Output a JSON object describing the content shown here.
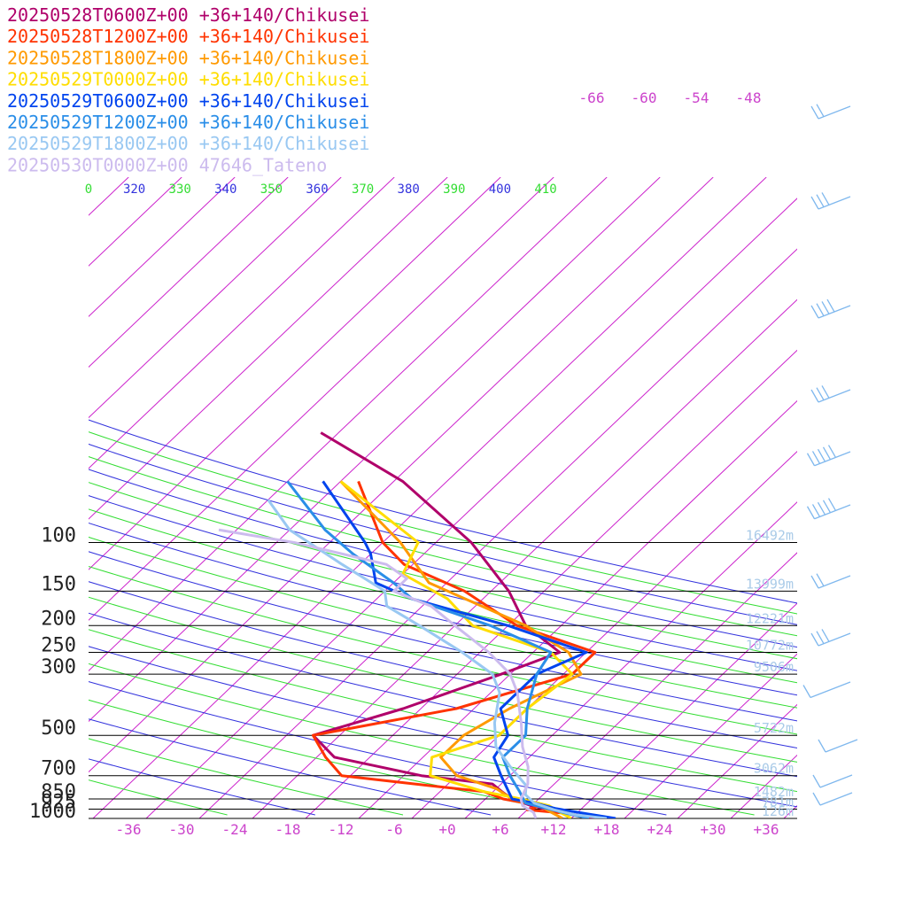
{
  "chart_data": {
    "type": "line",
    "title": "",
    "xlabel": "",
    "ylabel": "",
    "x_axis": {
      "ticks": [
        "-36",
        "-30",
        "-24",
        "-18",
        "-12",
        "-6",
        "+0",
        "+6",
        "+12",
        "+18",
        "+24",
        "+30",
        "+36"
      ],
      "tick_color": "#cc44cc"
    },
    "y_axis": {
      "scale": "log",
      "pressure_ticks": [
        "100",
        "150",
        "200",
        "250",
        "300",
        "500",
        "700",
        "850",
        "925",
        "1000"
      ]
    },
    "height_labels": [
      "16492m",
      "13999m",
      "12221m",
      "10772m",
      "9506m",
      "5722m",
      "3062m",
      "1482m",
      "781m",
      "126m"
    ],
    "theta_labels": [
      "0",
      "320",
      "330",
      "340",
      "350",
      "360",
      "370",
      "380",
      "390",
      "400",
      "410"
    ],
    "mixing_ratio_labels": [
      "-66",
      "-60",
      "-54",
      "-48"
    ],
    "legend_position": "top-left",
    "series": [
      {
        "name": "20250528T0600Z+00 +36+140/Chikusei",
        "color": "#b0006a"
      },
      {
        "name": "20250528T1200Z+00 +36+140/Chikusei",
        "color": "#ff3300"
      },
      {
        "name": "20250528T1800Z+00 +36+140/Chikusei",
        "color": "#ff9900"
      },
      {
        "name": "20250529T0000Z+00 +36+140/Chikusei",
        "color": "#ffdd00"
      },
      {
        "name": "20250529T0600Z+00 +36+140/Chikusei",
        "color": "#0044ee"
      },
      {
        "name": "20250529T1200Z+00 +36+140/Chikusei",
        "color": "#2a8ee8"
      },
      {
        "name": "20250529T1800Z+00 +36+140/Chikusei",
        "color": "#99c8f2"
      },
      {
        "name": "20250530T0000Z+00 47646_Tateno",
        "color": "#ccbbee"
      }
    ]
  }
}
